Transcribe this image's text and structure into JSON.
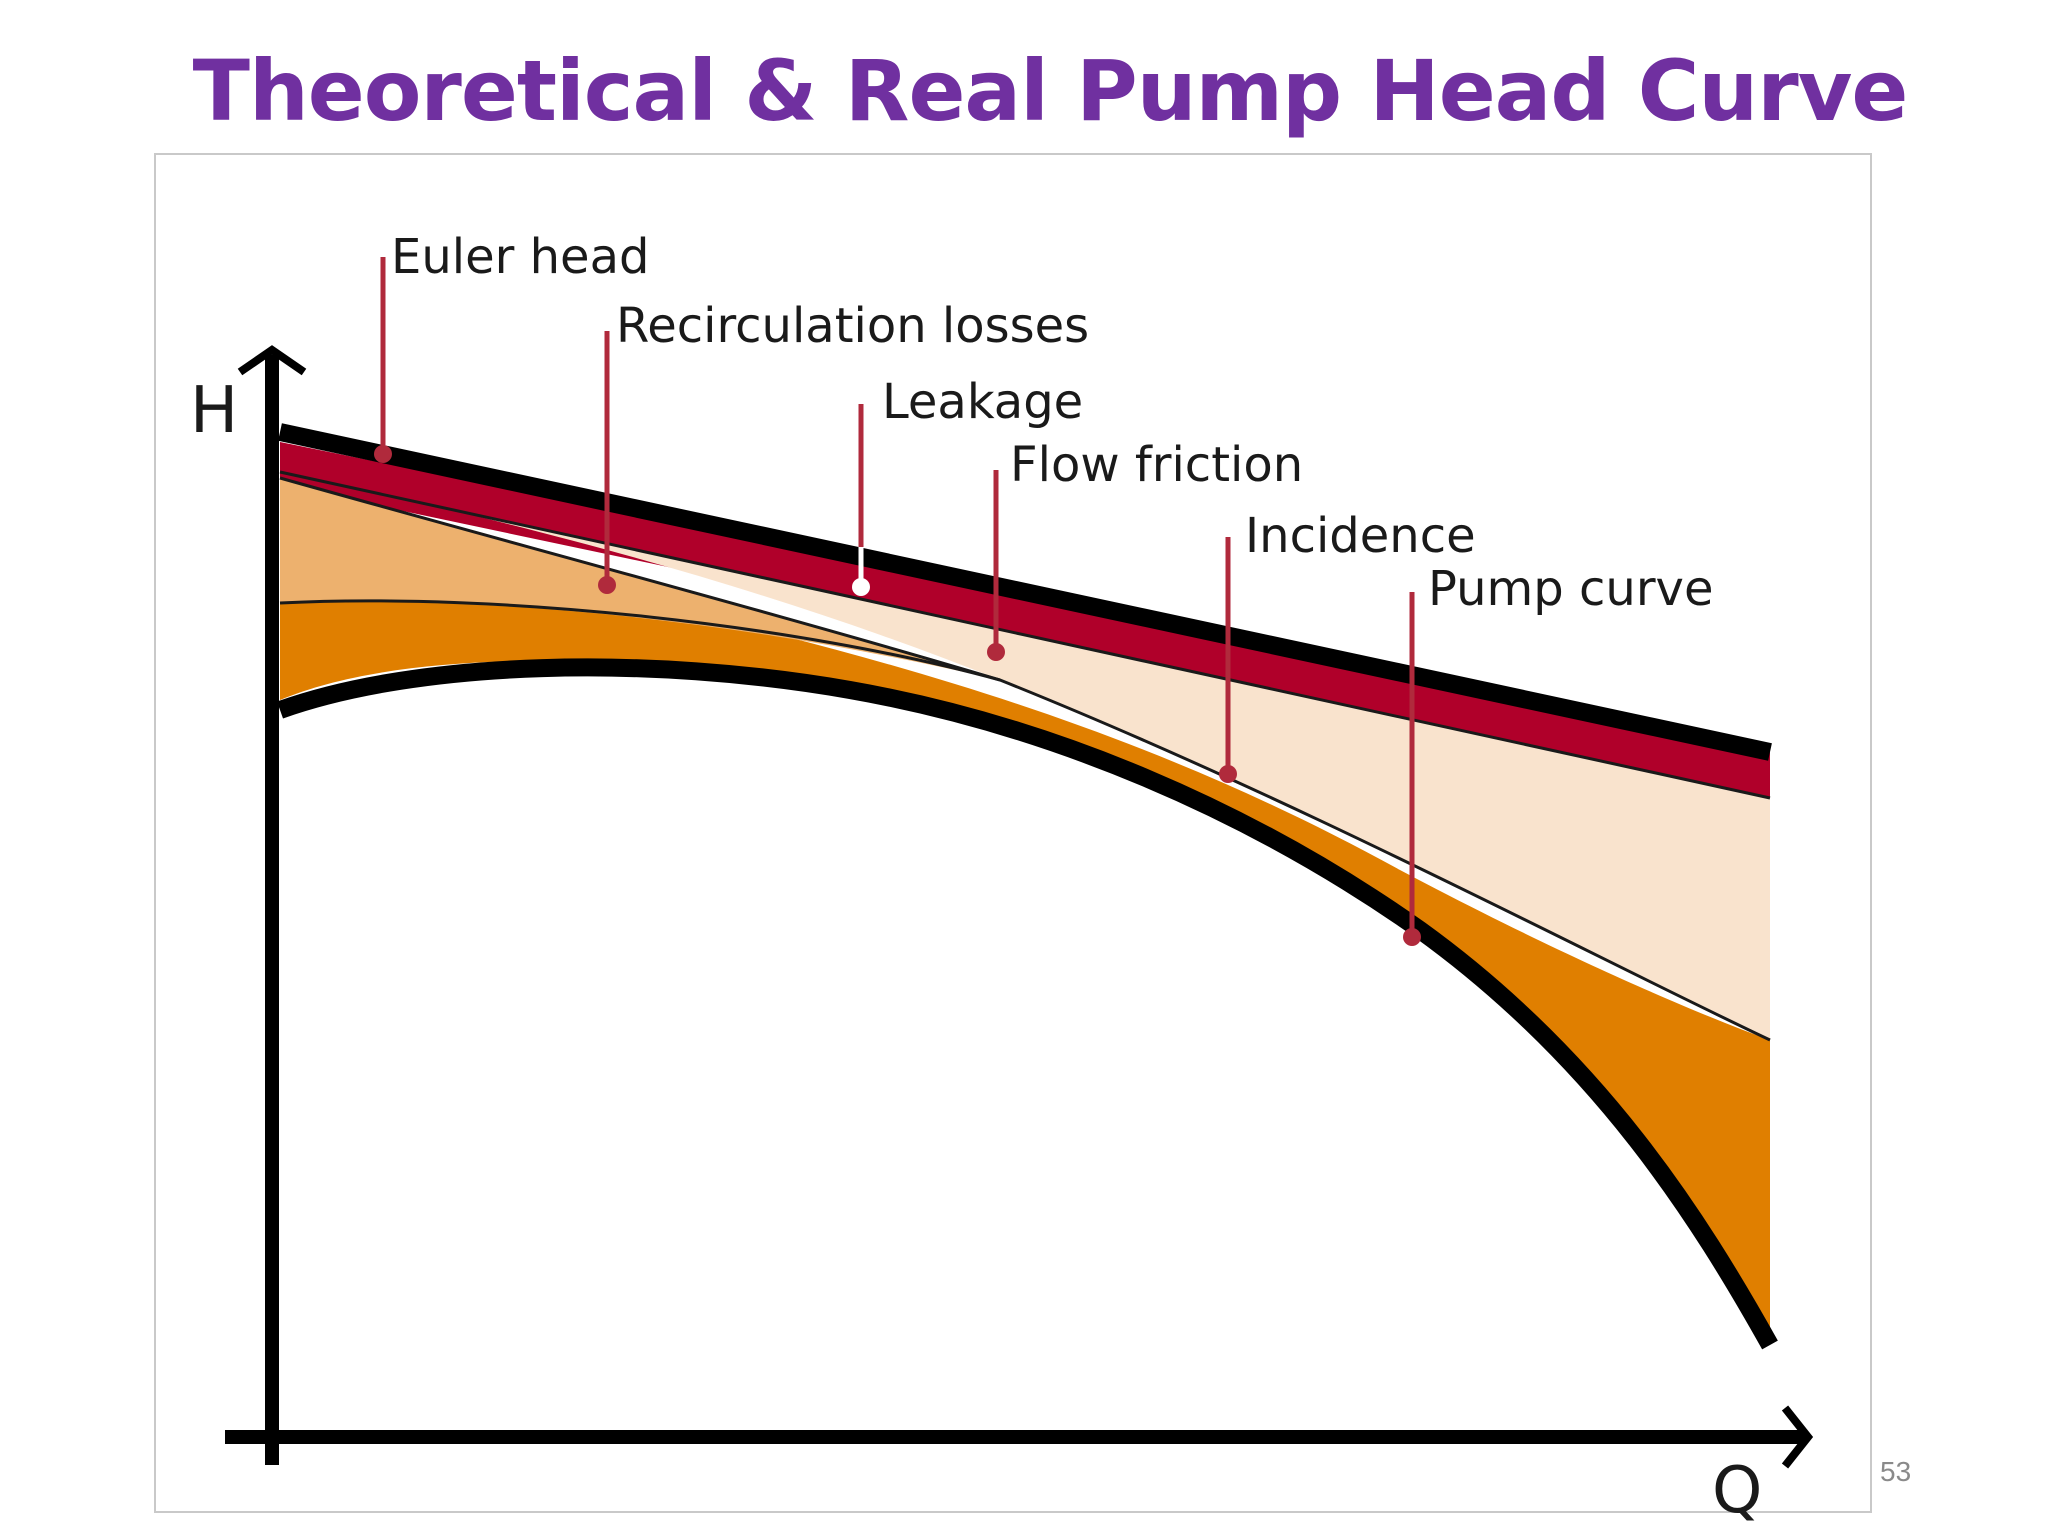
{
  "slide": {
    "title": "Theoretical & Real Pump Head Curve",
    "page_number": "53"
  },
  "diagram": {
    "axes": {
      "y_label": "H",
      "x_label": "Q"
    },
    "annotations": [
      "Euler head",
      "Recirculation losses",
      "Leakage",
      "Flow friction",
      "Incidence",
      "Pump curve"
    ],
    "colors": {
      "title": "#7030a0",
      "euler_band": "#b0002a",
      "light_loss": "#f9e3cd",
      "mid_loss": "#edb16e",
      "dark_loss": "#e07f00",
      "leader_line": "#b02a3c",
      "curve": "#000000"
    }
  }
}
